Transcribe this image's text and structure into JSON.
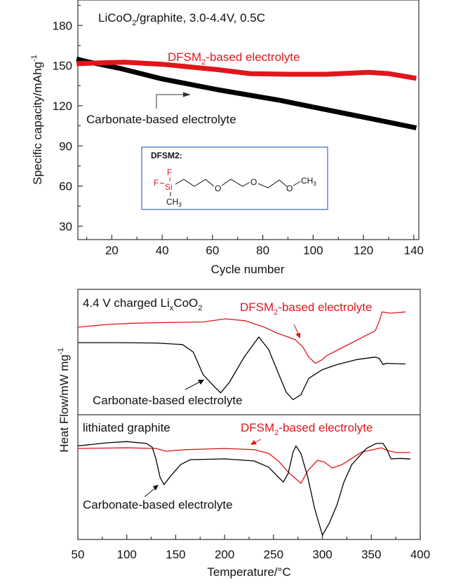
{
  "chart_data": [
    {
      "type": "line",
      "panel": "capacity-vs-cycle",
      "title": "",
      "annotation": "LiCoO2/graphite, 3.0-4.4V, 0.5C",
      "annotation_parts": {
        "a": "LiCoO",
        "sub": "2",
        "b": "/graphite, 3.0-4.4V, 0.5C"
      },
      "xlabel": "Cycle number",
      "ylabel": "Specific capacity/mAhg",
      "ylabel_sup": "-1",
      "xlim": [
        6.5,
        142
      ],
      "ylim": [
        20,
        199
      ],
      "xticks": [
        20,
        40,
        60,
        80,
        100,
        120,
        140
      ],
      "yticks": [
        30,
        60,
        90,
        120,
        150,
        180
      ],
      "xticks_minor": [
        10,
        30,
        50,
        70,
        90,
        110,
        130
      ],
      "yticks_minor": [
        45,
        75,
        105,
        135,
        165,
        195
      ],
      "series": [
        {
          "name": "Carbonate-based electrolyte",
          "color": "#000000",
          "label_text": "Carbonate-based electrolyte",
          "points": [
            [
              6,
              155
            ],
            [
              10,
              153
            ],
            [
              23,
              148
            ],
            [
              40,
              140
            ],
            [
              62,
              132
            ],
            [
              87,
              124
            ],
            [
              100,
              119
            ],
            [
              120,
              111.5
            ],
            [
              141,
              103.5
            ]
          ]
        },
        {
          "name": "DFSM2-based electrolyte",
          "color": "#e0161b",
          "label_parts": {
            "a": "DFSM",
            "sub": "2",
            "b": "-based electrolyte"
          },
          "points": [
            [
              6,
              151.5
            ],
            [
              15,
              152
            ],
            [
              25,
              152.5
            ],
            [
              40,
              151
            ],
            [
              62,
              147
            ],
            [
              75,
              144
            ],
            [
              90,
              143.5
            ],
            [
              105,
              143.5
            ],
            [
              122,
              145
            ],
            [
              130,
              144
            ],
            [
              141,
              140.5
            ]
          ]
        }
      ],
      "inset": {
        "title": "DFSM2:",
        "border_color": "#4a72c4",
        "structure_atoms": {
          "F_top": "F",
          "F_left": "F",
          "Si": "Si",
          "CH3_bottom": "CH",
          "CH3_bottom_sub": "3",
          "O1": "O",
          "O2": "O",
          "O3": "O",
          "CH3_end": "CH",
          "CH3_end_sub": "3"
        }
      }
    },
    {
      "type": "line",
      "panel": "dsc-heat-flow",
      "xlabel": "Temperature/°C",
      "ylabel": "Heat Flow/mW mg",
      "ylabel_sup": "-1",
      "xlim": [
        50,
        400
      ],
      "xticks": [
        50,
        100,
        150,
        200,
        250,
        300,
        350,
        400
      ],
      "xticks_minor": [
        75,
        125,
        175,
        225,
        275,
        325,
        375
      ],
      "y_units": "arbitrary (0-10 per sub-panel)",
      "subpanels": [
        {
          "label": "4.4 V charged LixCoO2",
          "label_parts": {
            "a": "4.4 V charged Li",
            "sub": "x",
            "b": "CoO",
            "sub2": "2"
          },
          "ylim": [
            0,
            10
          ],
          "series": [
            {
              "name": "DFSM2-based electrolyte",
              "color": "#e0161b",
              "label_parts": {
                "a": "DFSM",
                "sub": "2",
                "b": "-based electrolyte"
              },
              "points": [
                [
                  50,
                  6.98
                ],
                [
                  80,
                  7.2
                ],
                [
                  107,
                  7.3
                ],
                [
                  140,
                  7.35
                ],
                [
                  178,
                  7.4
                ],
                [
                  201,
                  7.65
                ],
                [
                  221,
                  7.5
                ],
                [
                  240,
                  7.0
                ],
                [
                  254,
                  6.5
                ],
                [
                  272,
                  6.0
                ],
                [
                  280,
                  5.4
                ],
                [
                  286,
                  4.6
                ],
                [
                  293,
                  4.1
                ],
                [
                  300,
                  4.4
                ],
                [
                  304,
                  4.7
                ],
                [
                  329,
                  5.7
                ],
                [
                  354,
                  6.7
                ],
                [
                  358,
                  7.4
                ],
                [
                  361,
                  8.2
                ],
                [
                  365,
                  8.15
                ],
                [
                  370,
                  8.1
                ],
                [
                  385,
                  8.2
                ]
              ]
            },
            {
              "name": "Carbonate-based electrolyte",
              "color": "#000000",
              "label_text": "Carbonate-based electrolyte",
              "points": [
                [
                  50,
                  5.75
                ],
                [
                  92,
                  5.75
                ],
                [
                  130,
                  5.72
                ],
                [
                  157,
                  5.6
                ],
                [
                  168,
                  5.0
                ],
                [
                  178,
                  3.2
                ],
                [
                  190,
                  2.2
                ],
                [
                  196,
                  1.75
                ],
                [
                  205,
                  2.6
                ],
                [
                  220,
                  4.6
                ],
                [
                  235,
                  6.2
                ],
                [
                  245,
                  5.2
                ],
                [
                  254,
                  3.5
                ],
                [
                  263,
                  1.8
                ],
                [
                  270,
                  1.2
                ],
                [
                  278,
                  1.6
                ],
                [
                  286,
                  2.9
                ],
                [
                  300,
                  3.6
                ],
                [
                  315,
                  4.0
                ],
                [
                  335,
                  4.4
                ],
                [
                  354,
                  4.6
                ],
                [
                  358,
                  4.5
                ],
                [
                  362,
                  4.0
                ],
                [
                  365,
                  4.1
                ],
                [
                  385,
                  4.05
                ]
              ]
            }
          ]
        },
        {
          "label": "lithiated graphite",
          "ylim": [
            0,
            10
          ],
          "series": [
            {
              "name": "DFSM2-based electrolyte",
              "color": "#e0161b",
              "label_parts": {
                "a": "DFSM",
                "sub": "2",
                "b": "-based electrolyte"
              },
              "points": [
                [
                  50,
                  7.3
                ],
                [
                  100,
                  7.35
                ],
                [
                  130,
                  7.3
                ],
                [
                  140,
                  7.08
                ],
                [
                  160,
                  7.2
                ],
                [
                  200,
                  7.3
                ],
                [
                  230,
                  7.2
                ],
                [
                  245,
                  6.9
                ],
                [
                  255,
                  6.3
                ],
                [
                  265,
                  5.4
                ],
                [
                  278,
                  4.5
                ],
                [
                  285,
                  5.5
                ],
                [
                  295,
                  6.35
                ],
                [
                  302,
                  6.2
                ],
                [
                  310,
                  5.73
                ],
                [
                  320,
                  6.0
                ],
                [
                  340,
                  7.0
                ],
                [
                  360,
                  7.35
                ],
                [
                  368,
                  7.1
                ],
                [
                  375,
                  6.97
                ],
                [
                  390,
                  6.97
                ]
              ]
            },
            {
              "name": "Carbonate-based electrolyte",
              "color": "#000000",
              "label_text": "Carbonate-based electrolyte",
              "points": [
                [
                  50,
                  7.5
                ],
                [
                  80,
                  7.75
                ],
                [
                  100,
                  7.85
                ],
                [
                  120,
                  7.7
                ],
                [
                  126,
                  7.4
                ],
                [
                  130,
                  6.4
                ],
                [
                  134,
                  5.0
                ],
                [
                  138,
                  4.4
                ],
                [
                  145,
                  5.1
                ],
                [
                  155,
                  6.0
                ],
                [
                  165,
                  6.4
                ],
                [
                  200,
                  6.46
                ],
                [
                  230,
                  6.3
                ],
                [
                  245,
                  5.8
                ],
                [
                  255,
                  5.0
                ],
                [
                  260,
                  4.6
                ],
                [
                  265,
                  5.3
                ],
                [
                  270,
                  7.0
                ],
                [
                  273,
                  7.5
                ],
                [
                  278,
                  6.9
                ],
                [
                  285,
                  5.0
                ],
                [
                  292,
                  2.5
                ],
                [
                  300,
                  0.34
                ],
                [
                  307,
                  1.3
                ],
                [
                  315,
                  2.8
                ],
                [
                  322,
                  4.6
                ],
                [
                  330,
                  6.0
                ],
                [
                  345,
                  7.3
                ],
                [
                  355,
                  7.7
                ],
                [
                  362,
                  7.7
                ],
                [
                  366,
                  7.2
                ],
                [
                  370,
                  6.46
                ],
                [
                  380,
                  6.5
                ],
                [
                  390,
                  6.45
                ]
              ]
            }
          ]
        }
      ]
    }
  ]
}
